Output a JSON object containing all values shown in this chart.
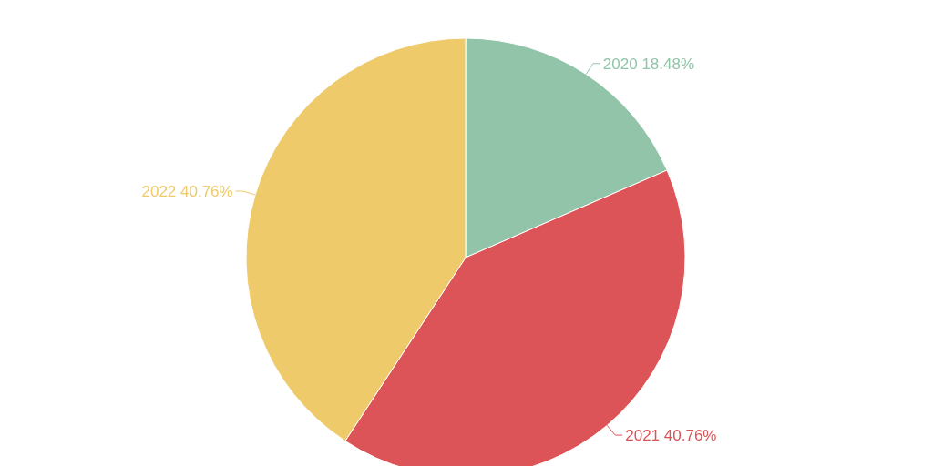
{
  "chart_data": {
    "type": "pie",
    "categories": [
      "2020",
      "2021",
      "2022"
    ],
    "values": [
      18.48,
      40.76,
      40.76
    ],
    "colors": [
      "#91c4a8",
      "#dc5457",
      "#eeca6a"
    ],
    "value_labels": [
      "18.48%",
      "40.76%",
      "40.76%"
    ]
  }
}
